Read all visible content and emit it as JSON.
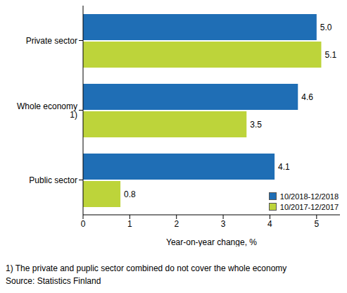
{
  "chart_data": {
    "type": "bar",
    "orientation": "horizontal",
    "categories": [
      "Private sector",
      "Whole economy 1)",
      "Public sector"
    ],
    "series": [
      {
        "name": "10/2018-12/2018",
        "color": "#1f6eb5",
        "values": [
          5.0,
          4.6,
          4.1
        ],
        "value_labels": [
          "5.0",
          "4.6",
          "4.1"
        ]
      },
      {
        "name": "10/2017-12/2017",
        "color": "#bdd43a",
        "values": [
          5.1,
          3.5,
          0.8
        ],
        "value_labels": [
          "5.1",
          "3.5",
          "0.8"
        ]
      }
    ],
    "xlabel": "Year-on-year change, %",
    "xlim": [
      0,
      5.5
    ],
    "xticks": [
      0,
      1,
      2,
      3,
      4,
      5
    ],
    "grid": false,
    "data_labels": true,
    "legend": "lower right",
    "annotations": [
      "1) The private and puplic sector combined do not cover the whole economy",
      "Source: Statistics Finland"
    ]
  }
}
